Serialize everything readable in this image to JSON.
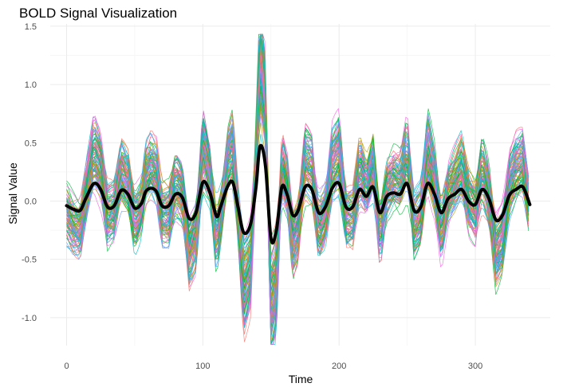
{
  "chart_data": {
    "type": "line",
    "title": "BOLD Signal Visualization",
    "xlabel": "Time",
    "ylabel": "Signal Value",
    "xlim": [
      -12,
      355
    ],
    "ylim": [
      -1.24,
      1.52
    ],
    "x_ticks": [
      0,
      100,
      200,
      300
    ],
    "y_ticks": [
      -1.0,
      -0.5,
      0.0,
      0.5,
      1.0,
      1.5
    ],
    "x_tick_labels": [
      "0",
      "100",
      "200",
      "300"
    ],
    "y_tick_labels": [
      "-1.0",
      "-0.5",
      "0.0",
      "0.5",
      "1.0",
      "1.5"
    ],
    "grid": true,
    "legend": "none",
    "individual_series": {
      "count": 100,
      "time_range": [
        0,
        340
      ],
      "palette": [
        "#F8766D",
        "#B79F00",
        "#00BA38",
        "#00BFC4",
        "#619CFF",
        "#F564E3"
      ],
      "line_width": 0.7,
      "approx_envelope": [
        -1.23,
        1.43
      ]
    },
    "mean_series": {
      "color": "#000000",
      "line_width": 4,
      "x": [
        0,
        5,
        10,
        14,
        20,
        25,
        30,
        35,
        40,
        45,
        50,
        55,
        58,
        62,
        66,
        70,
        75,
        80,
        85,
        90,
        95,
        100,
        105,
        110,
        113,
        118,
        122,
        126,
        130,
        135,
        139,
        142,
        146,
        150,
        154,
        158,
        162,
        166,
        170,
        175,
        180,
        185,
        190,
        195,
        200,
        205,
        210,
        215,
        220,
        225,
        230,
        235,
        240,
        245,
        250,
        255,
        260,
        265,
        270,
        275,
        280,
        285,
        290,
        295,
        300,
        305,
        310,
        315,
        320,
        325,
        330,
        335,
        340
      ],
      "y": [
        -0.04,
        -0.07,
        -0.08,
        0.02,
        0.15,
        0.1,
        -0.05,
        -0.04,
        0.09,
        0.06,
        -0.06,
        -0.02,
        0.08,
        0.11,
        0.08,
        -0.04,
        -0.04,
        0.06,
        0.03,
        -0.15,
        -0.1,
        0.16,
        0.08,
        -0.13,
        -0.05,
        0.12,
        0.16,
        -0.06,
        -0.27,
        -0.2,
        0.12,
        0.47,
        0.3,
        -0.32,
        -0.25,
        0.12,
        0.05,
        -0.12,
        -0.08,
        0.12,
        0.1,
        -0.1,
        -0.05,
        0.11,
        0.15,
        -0.05,
        -0.05,
        0.1,
        0.04,
        0.12,
        -0.1,
        0.04,
        0.07,
        0.06,
        0.15,
        -0.08,
        -0.05,
        0.15,
        0.06,
        -0.1,
        0.02,
        0.06,
        0.1,
        0.0,
        -0.03,
        0.1,
        0.02,
        -0.16,
        -0.12,
        0.05,
        0.1,
        0.12,
        -0.03
      ]
    }
  }
}
